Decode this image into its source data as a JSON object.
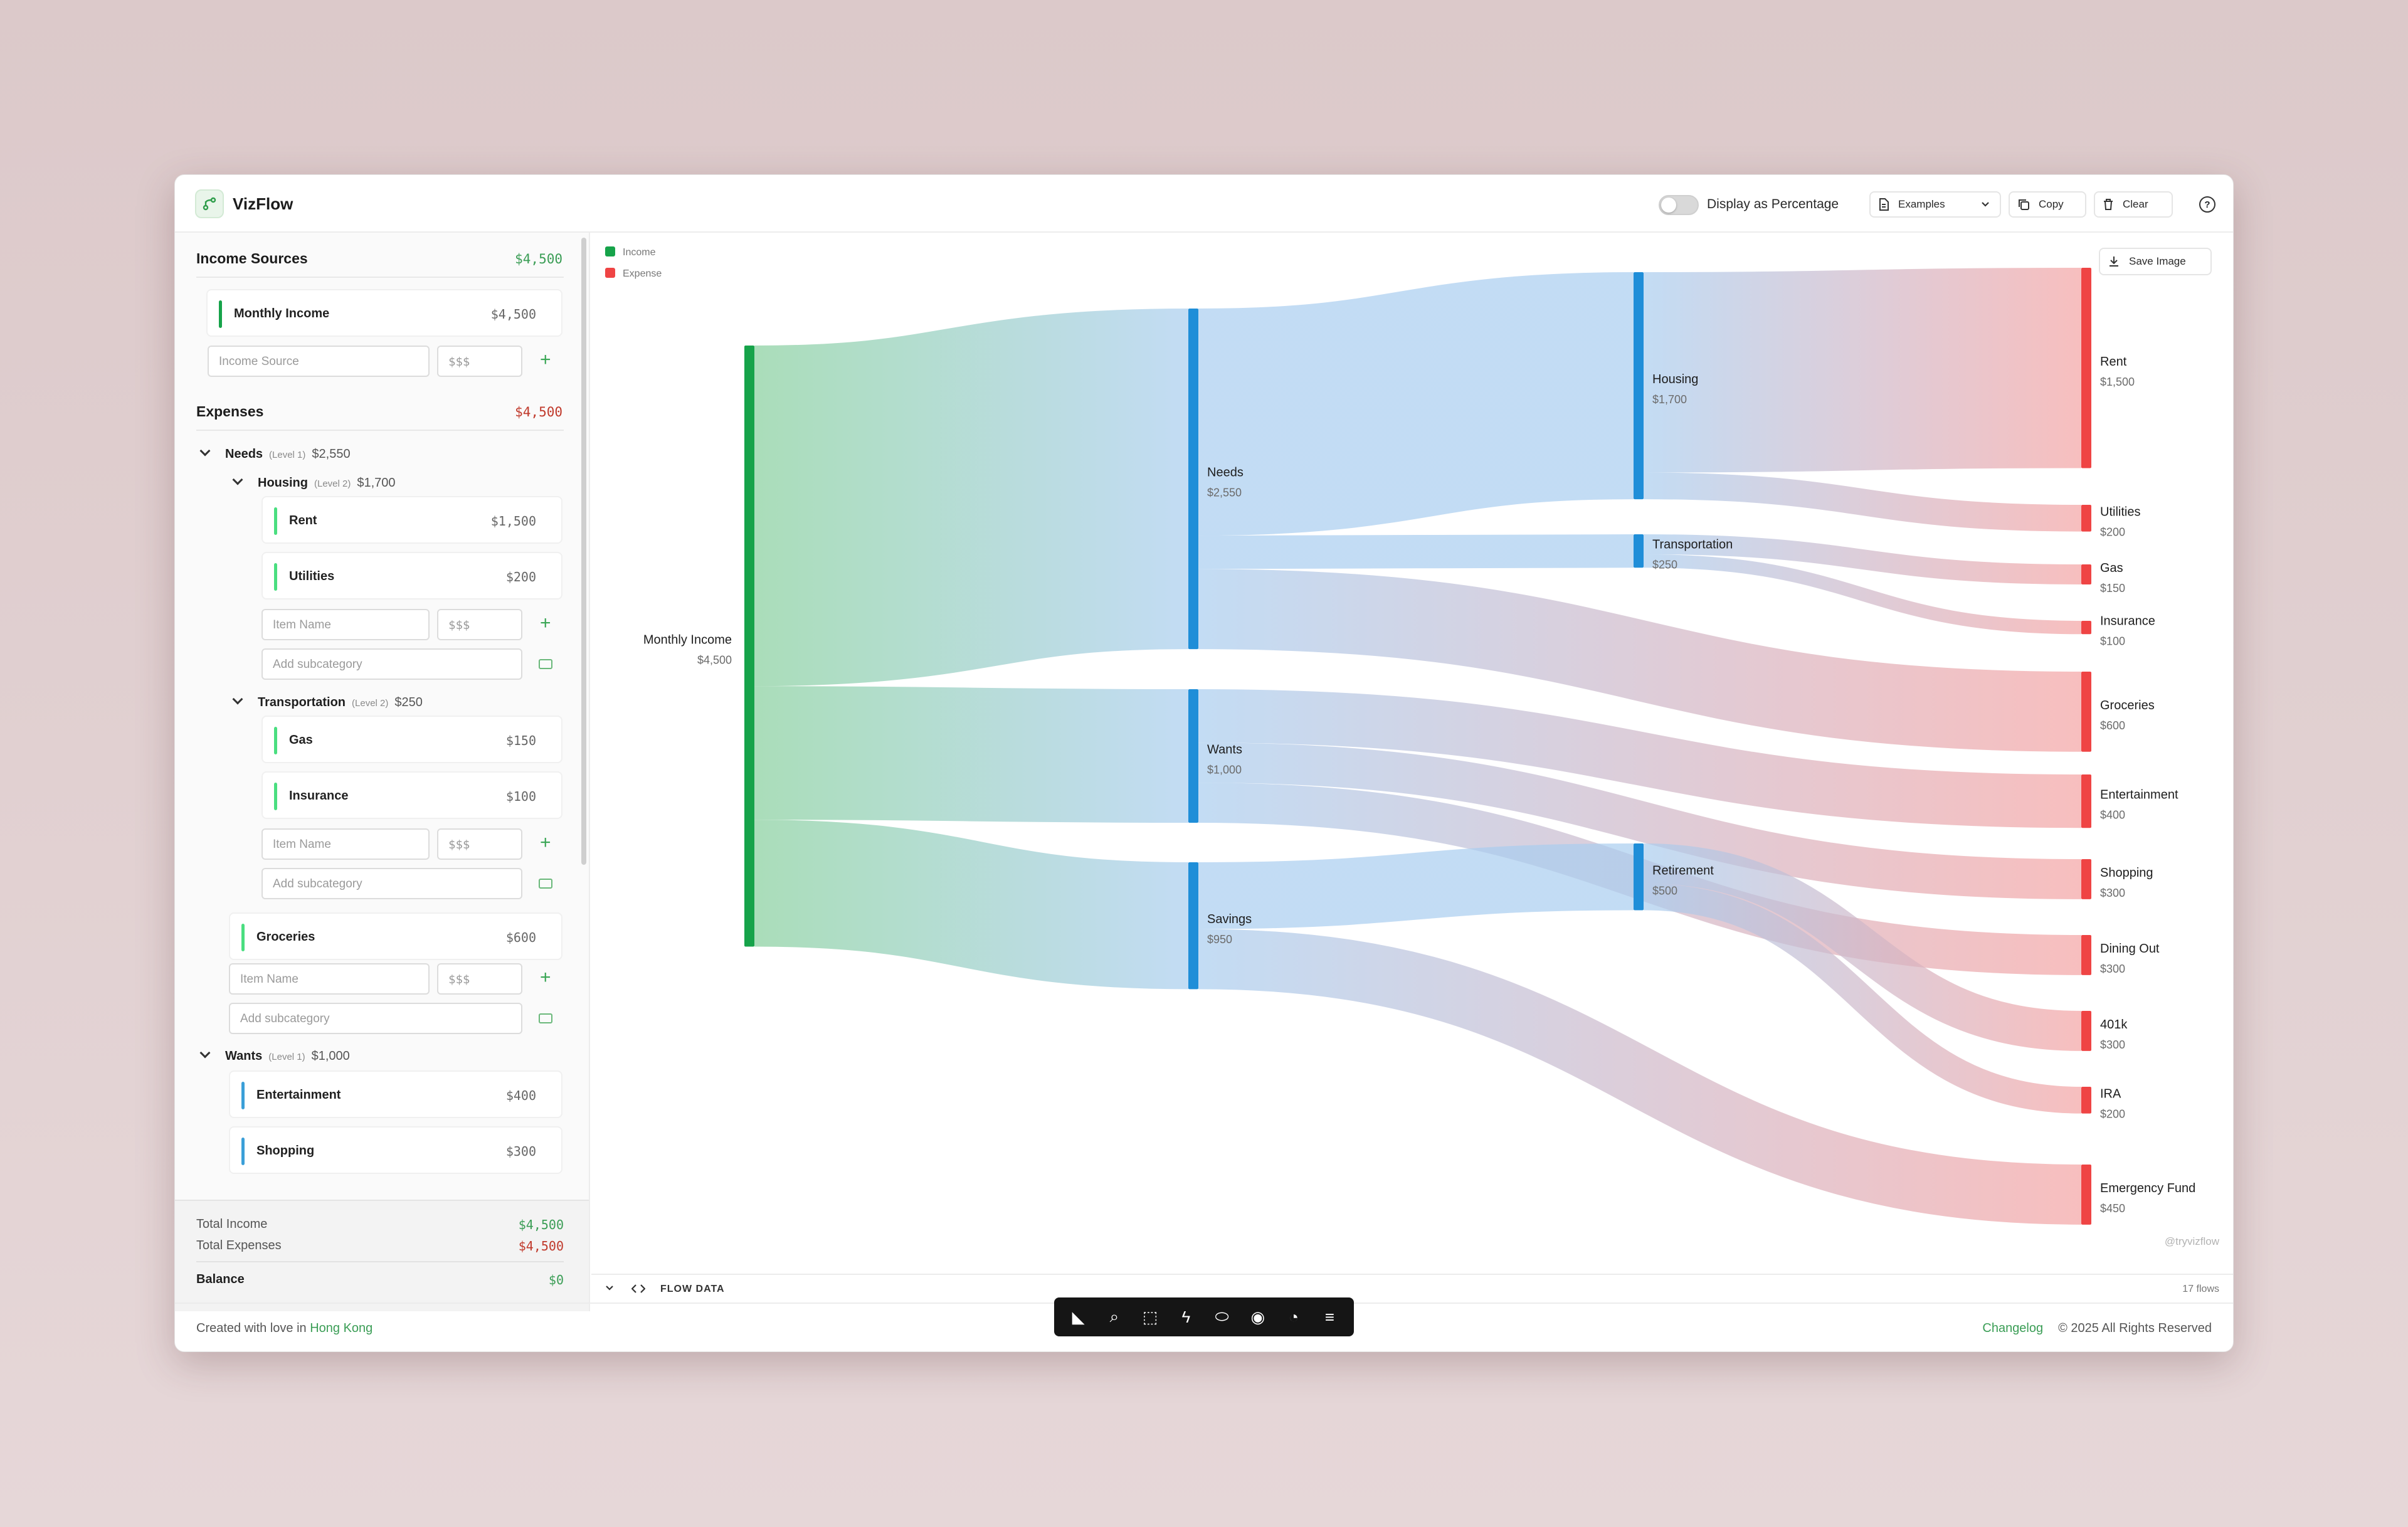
{
  "app": {
    "title": "VizFlow"
  },
  "toolbar": {
    "toggle_label": "Display as Percentage",
    "examples_label": "Examples",
    "copy_label": "Copy",
    "clear_label": "Clear",
    "help_label": "?"
  },
  "income": {
    "title": "Income Sources",
    "total": "$4,500",
    "items": [
      {
        "name": "Monthly Income",
        "amount": "$4,500"
      }
    ],
    "name_placeholder": "Income Source",
    "amount_placeholder": "$$$"
  },
  "expenses": {
    "title": "Expenses",
    "total": "$4,500",
    "needs": {
      "name": "Needs",
      "level": "(Level 1)",
      "value": "$2,550"
    },
    "housing": {
      "name": "Housing",
      "level": "(Level 2)",
      "value": "$1,700",
      "items": [
        {
          "name": "Rent",
          "amount": "$1,500"
        },
        {
          "name": "Utilities",
          "amount": "$200"
        }
      ]
    },
    "transportation": {
      "name": "Transportation",
      "level": "(Level 2)",
      "value": "$250",
      "items": [
        {
          "name": "Gas",
          "amount": "$150"
        },
        {
          "name": "Insurance",
          "amount": "$100"
        }
      ]
    },
    "groceries": {
      "name": "Groceries",
      "amount": "$600"
    },
    "wants": {
      "name": "Wants",
      "level": "(Level 1)",
      "value": "$1,000",
      "items": [
        {
          "name": "Entertainment",
          "amount": "$400"
        },
        {
          "name": "Shopping",
          "amount": "$300"
        }
      ]
    },
    "item_placeholder": "Item Name",
    "amount_placeholder": "$$$",
    "subcategory_placeholder": "Add subcategory"
  },
  "summary": {
    "total_income_label": "Total Income",
    "total_income": "$4,500",
    "total_expenses_label": "Total Expenses",
    "total_expenses": "$4,500",
    "balance_label": "Balance",
    "balance": "$0"
  },
  "chart": {
    "legend": [
      {
        "name": "Income",
        "color": "#16a34a"
      },
      {
        "name": "Expense",
        "color": "#ef4444"
      }
    ],
    "save_label": "Save Image",
    "watermark": "@tryvizflow",
    "flow_data_label": "FLOW DATA",
    "flows_count": "17 flows"
  },
  "chart_data": {
    "type": "sankey",
    "nodes": [
      {
        "id": "Monthly Income",
        "value": 4500,
        "display": "$4,500",
        "kind": "income"
      },
      {
        "id": "Needs",
        "value": 2550,
        "display": "$2,550",
        "kind": "category"
      },
      {
        "id": "Wants",
        "value": 1000,
        "display": "$1,000",
        "kind": "category"
      },
      {
        "id": "Savings",
        "value": 950,
        "display": "$950",
        "kind": "category"
      },
      {
        "id": "Housing",
        "value": 1700,
        "display": "$1,700",
        "kind": "category"
      },
      {
        "id": "Transportation",
        "value": 250,
        "display": "$250",
        "kind": "category"
      },
      {
        "id": "Retirement",
        "value": 500,
        "display": "$500",
        "kind": "category"
      },
      {
        "id": "Rent",
        "value": 1500,
        "display": "$1,500",
        "kind": "expense"
      },
      {
        "id": "Utilities",
        "value": 200,
        "display": "$200",
        "kind": "expense"
      },
      {
        "id": "Gas",
        "value": 150,
        "display": "$150",
        "kind": "expense"
      },
      {
        "id": "Insurance",
        "value": 100,
        "display": "$100",
        "kind": "expense"
      },
      {
        "id": "Groceries",
        "value": 600,
        "display": "$600",
        "kind": "expense"
      },
      {
        "id": "Entertainment",
        "value": 400,
        "display": "$400",
        "kind": "expense"
      },
      {
        "id": "Shopping",
        "value": 300,
        "display": "$300",
        "kind": "expense"
      },
      {
        "id": "Dining Out",
        "value": 300,
        "display": "$300",
        "kind": "expense"
      },
      {
        "id": "401k",
        "value": 300,
        "display": "$300",
        "kind": "expense"
      },
      {
        "id": "IRA",
        "value": 200,
        "display": "$200",
        "kind": "expense"
      },
      {
        "id": "Emergency Fund",
        "value": 450,
        "display": "$450",
        "kind": "expense"
      }
    ],
    "links": [
      {
        "source": "Monthly Income",
        "target": "Needs",
        "value": 2550
      },
      {
        "source": "Monthly Income",
        "target": "Wants",
        "value": 1000
      },
      {
        "source": "Monthly Income",
        "target": "Savings",
        "value": 950
      },
      {
        "source": "Needs",
        "target": "Housing",
        "value": 1700
      },
      {
        "source": "Needs",
        "target": "Transportation",
        "value": 250
      },
      {
        "source": "Needs",
        "target": "Groceries",
        "value": 600
      },
      {
        "source": "Housing",
        "target": "Rent",
        "value": 1500
      },
      {
        "source": "Housing",
        "target": "Utilities",
        "value": 200
      },
      {
        "source": "Transportation",
        "target": "Gas",
        "value": 150
      },
      {
        "source": "Transportation",
        "target": "Insurance",
        "value": 100
      },
      {
        "source": "Wants",
        "target": "Entertainment",
        "value": 400
      },
      {
        "source": "Wants",
        "target": "Shopping",
        "value": 300
      },
      {
        "source": "Wants",
        "target": "Dining Out",
        "value": 300
      },
      {
        "source": "Savings",
        "target": "Retirement",
        "value": 500
      },
      {
        "source": "Savings",
        "target": "Emergency Fund",
        "value": 450
      },
      {
        "source": "Retirement",
        "target": "401k",
        "value": 300
      },
      {
        "source": "Retirement",
        "target": "IRA",
        "value": 200
      }
    ]
  },
  "footer": {
    "credit_prefix": "Created with love in",
    "credit_place": "Hong Kong",
    "changelog": "Changelog",
    "copyright": "© 2025 All Rights Reserved"
  },
  "dock": {
    "icons": [
      "logo-icon",
      "search-icon",
      "select-icon",
      "lightning-icon",
      "toggle-icon",
      "broadcast-icon",
      "chart-icon",
      "menu-icon"
    ]
  }
}
